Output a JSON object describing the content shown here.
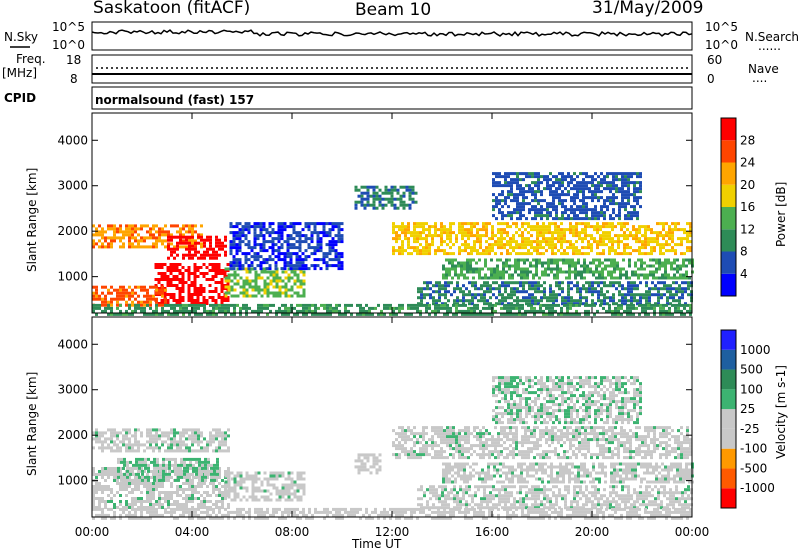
{
  "header": {
    "station": "Saskatoon (fitACF)",
    "beam": "Beam 10",
    "date": "31/May/2009"
  },
  "panel_labels": {
    "nsky": "N.Sky",
    "nsearch": "N.Search",
    "nsearch_marker": "......",
    "freq_line1": "Freq.",
    "freq_line2": "[MHz]",
    "nave": "Nave",
    "nave_marker": "....",
    "cpid": "CPID",
    "cpid_value": "normalsound (fast) 157"
  },
  "noise_panel": {
    "left_ticks": [
      "10^5",
      "10^0"
    ],
    "right_ticks": [
      "10^5",
      "10^0"
    ]
  },
  "freq_panel": {
    "left_ticks": [
      "18",
      "8"
    ],
    "right_ticks": [
      "60",
      "0"
    ]
  },
  "colors": {
    "power": [
      "#0000ff",
      "#1e4cb4",
      "#2e8b57",
      "#4caf50",
      "#f0d000",
      "#ffa500",
      "#ff4500",
      "#ff0000"
    ],
    "velocity": [
      "#ff0000",
      "#ff5a00",
      "#ff9900",
      "#c8c8c8",
      "#c8c8c8",
      "#3cb371",
      "#2e8b57",
      "#1e5fa0",
      "#2020ff"
    ]
  },
  "chart_data": [
    {
      "type": "heatmap",
      "title": "Power",
      "xlabel": "",
      "ylabel": "Slant Range [km]",
      "x_ticks": [
        "00:00",
        "04:00",
        "08:00",
        "12:00",
        "16:00",
        "20:00",
        "00:00"
      ],
      "xlim": [
        0,
        24
      ],
      "y_ticks": [
        "1000",
        "2000",
        "3000",
        "4000"
      ],
      "ylim": [
        200,
        4600
      ],
      "colorbar_label": "Power [dB]",
      "colorbar_ticks": [
        "4",
        "8",
        "12",
        "16",
        "20",
        "24",
        "28"
      ],
      "colorbar_range": [
        0,
        30
      ],
      "regions": [
        {
          "t0": 0.0,
          "t1": 4.4,
          "r0": 1650,
          "r1": 2150,
          "value": 22
        },
        {
          "t0": 3.0,
          "t1": 5.3,
          "r0": 1400,
          "r1": 1900,
          "value": 30
        },
        {
          "t0": 2.5,
          "t1": 5.5,
          "r0": 400,
          "r1": 1300,
          "value": 29
        },
        {
          "t0": 0.0,
          "t1": 3.0,
          "r0": 400,
          "r1": 800,
          "value": 24
        },
        {
          "t0": 5.3,
          "t1": 8.5,
          "r0": 600,
          "r1": 1200,
          "value": 14
        },
        {
          "t0": 5.5,
          "t1": 10.0,
          "r0": 1200,
          "r1": 2200,
          "value": 4
        },
        {
          "t0": 10.5,
          "t1": 13.0,
          "r0": 2500,
          "r1": 3000,
          "value": 8
        },
        {
          "t0": 12.0,
          "t1": 24.0,
          "r0": 1500,
          "r1": 2200,
          "value": 18
        },
        {
          "t0": 14.0,
          "t1": 24.0,
          "r0": 1000,
          "r1": 1400,
          "value": 12
        },
        {
          "t0": 13.0,
          "t1": 24.0,
          "r0": 400,
          "r1": 900,
          "value": 8
        },
        {
          "t0": 16.0,
          "t1": 22.0,
          "r0": 2300,
          "r1": 3300,
          "value": 6
        },
        {
          "t0": 0.0,
          "t1": 24.0,
          "r0": 200,
          "r1": 400,
          "value": 10
        }
      ]
    },
    {
      "type": "heatmap",
      "title": "Velocity",
      "xlabel": "Time UT",
      "ylabel": "Slant Range [km]",
      "x_ticks": [
        "00:00",
        "04:00",
        "08:00",
        "12:00",
        "16:00",
        "20:00",
        "00:00"
      ],
      "xlim": [
        0,
        24
      ],
      "y_ticks": [
        "1000",
        "2000",
        "3000",
        "4000"
      ],
      "ylim": [
        200,
        4600
      ],
      "colorbar_label": "Velocity [m s-1]",
      "colorbar_ticks": [
        "1000",
        "500",
        "100",
        "25",
        "-25",
        "-100",
        "-500",
        "-1000"
      ],
      "colorbar_range": [
        -1200,
        1200
      ],
      "regions": [
        {
          "t0": 0.0,
          "t1": 5.5,
          "r0": 1650,
          "r1": 2150,
          "value": 0
        },
        {
          "t0": 0.0,
          "t1": 5.5,
          "r0": 400,
          "r1": 1300,
          "value": 0
        },
        {
          "t0": 1.0,
          "t1": 5.0,
          "r0": 1000,
          "r1": 1500,
          "value": 150
        },
        {
          "t0": 5.3,
          "t1": 8.5,
          "r0": 600,
          "r1": 1200,
          "value": 0
        },
        {
          "t0": 10.5,
          "t1": 11.5,
          "r0": 1200,
          "r1": 1600,
          "value": -200
        },
        {
          "t0": 12.0,
          "t1": 24.0,
          "r0": 1500,
          "r1": 2200,
          "value": 0
        },
        {
          "t0": 14.0,
          "t1": 24.0,
          "r0": 1000,
          "r1": 1400,
          "value": 0
        },
        {
          "t0": 13.0,
          "t1": 24.0,
          "r0": 400,
          "r1": 900,
          "value": 0
        },
        {
          "t0": 16.0,
          "t1": 22.0,
          "r0": 2300,
          "r1": 3300,
          "value": 80
        },
        {
          "t0": 0.0,
          "t1": 24.0,
          "r0": 200,
          "r1": 400,
          "value": -100
        }
      ]
    }
  ]
}
